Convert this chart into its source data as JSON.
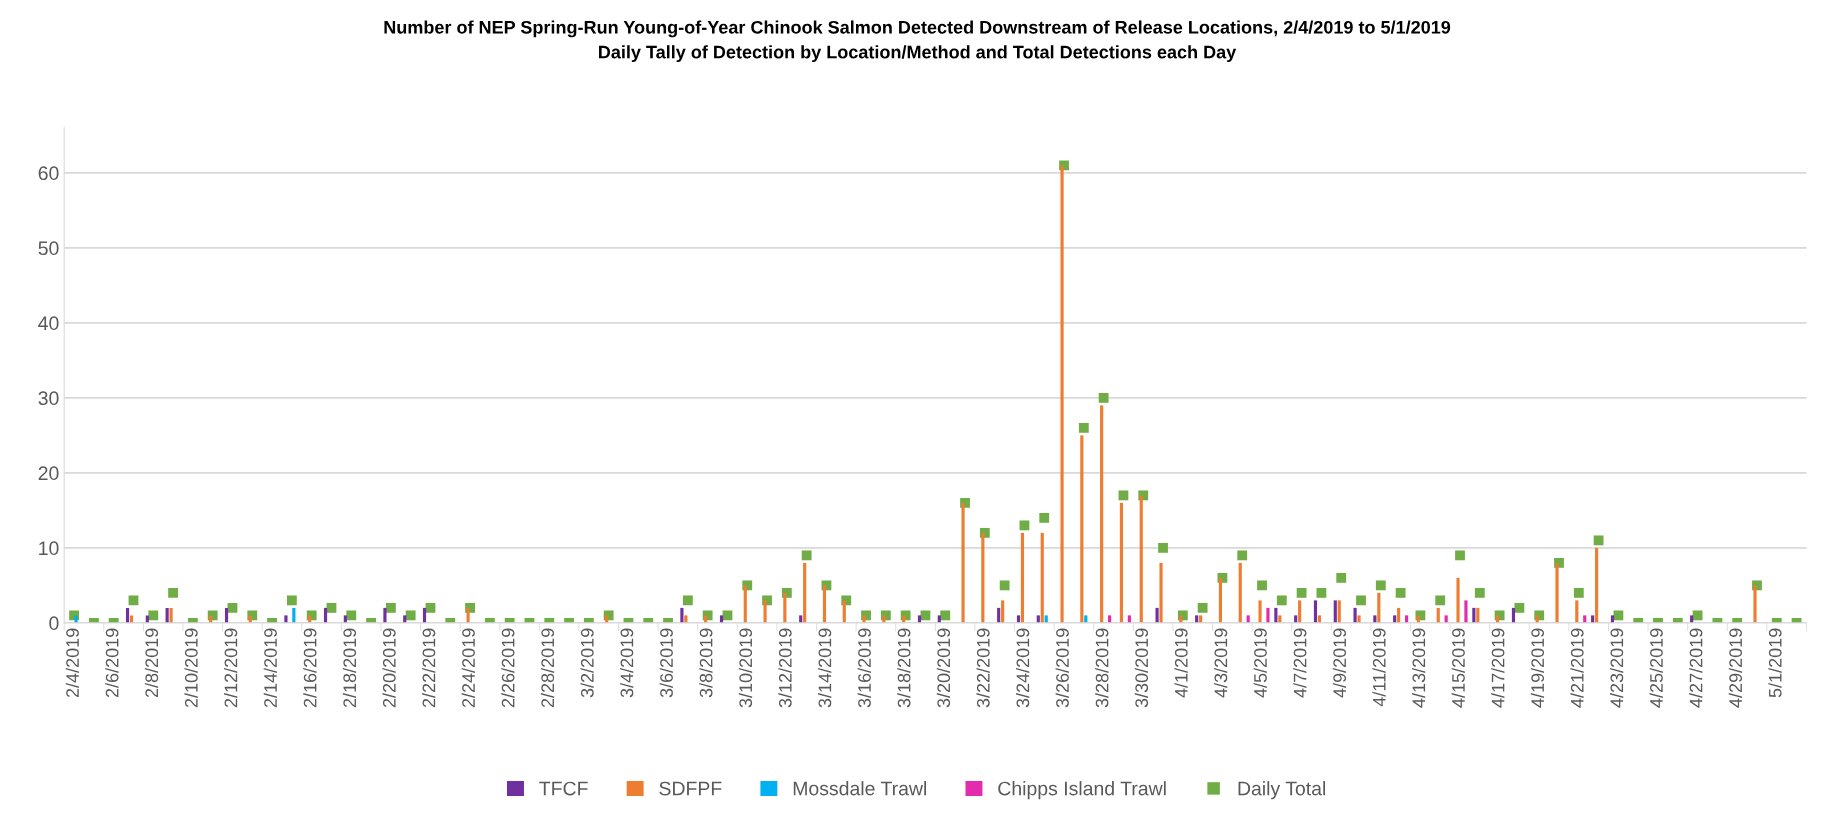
{
  "chart_data": {
    "type": "bar",
    "title": "Number of NEP Spring-Run Young-of-Year Chinook Salmon Detected Downstream of Release Locations, 2/4/2019 to 5/1/2019",
    "subtitle": "Daily Tally of Detection by Location/Method and Total Detections each Day",
    "categories": [
      "2/4/2019",
      null,
      "2/6/2019",
      null,
      "2/8/2019",
      null,
      "2/10/2019",
      null,
      "2/12/2019",
      null,
      "2/14/2019",
      null,
      "2/16/2019",
      null,
      "2/18/2019",
      null,
      "2/20/2019",
      null,
      "2/22/2019",
      null,
      "2/24/2019",
      null,
      "2/26/2019",
      null,
      "2/28/2019",
      null,
      "3/2/2019",
      null,
      "3/4/2019",
      null,
      "3/6/2019",
      null,
      "3/8/2019",
      null,
      "3/10/2019",
      null,
      "3/12/2019",
      null,
      "3/14/2019",
      null,
      "3/16/2019",
      null,
      "3/18/2019",
      null,
      "3/20/2019",
      null,
      "3/22/2019",
      null,
      "3/24/2019",
      null,
      "3/26/2019",
      null,
      "3/28/2019",
      null,
      "3/30/2019",
      null,
      "4/1/2019",
      null,
      "4/3/2019",
      null,
      "4/5/2019",
      null,
      "4/7/2019",
      null,
      "4/9/2019",
      null,
      "4/11/2019",
      null,
      "4/13/2019",
      null,
      "4/15/2019",
      null,
      "4/17/2019",
      null,
      "4/19/2019",
      null,
      "4/21/2019",
      null,
      "4/23/2019",
      null,
      "4/25/2019",
      null,
      "4/27/2019",
      null,
      "4/29/2019",
      null,
      "5/1/2019",
      null
    ],
    "series": [
      {
        "name": "TFCF",
        "color": "#7030a0",
        "values": [
          0,
          0,
          0,
          2,
          1,
          2,
          0,
          0,
          2,
          0,
          0,
          1,
          0,
          2,
          1,
          0,
          2,
          1,
          2,
          0,
          0,
          0,
          0,
          0,
          0,
          0,
          0,
          0,
          0,
          0,
          0,
          2,
          0,
          1,
          0,
          0,
          0,
          1,
          0,
          0,
          0,
          0,
          0,
          1,
          1,
          0,
          0,
          2,
          1,
          1,
          0,
          0,
          0,
          0,
          0,
          2,
          0,
          1,
          0,
          0,
          0,
          2,
          1,
          3,
          3,
          2,
          1,
          1,
          0,
          0,
          0,
          2,
          0,
          2,
          0,
          0,
          0,
          1,
          1,
          0,
          0,
          0,
          1,
          0,
          0,
          0,
          0,
          0
        ]
      },
      {
        "name": "SDFPF",
        "color": "#ed7d31",
        "values": [
          0,
          0,
          0,
          1,
          0,
          2,
          0,
          1,
          0,
          1,
          0,
          0,
          1,
          0,
          0,
          0,
          0,
          0,
          0,
          0,
          2,
          0,
          0,
          0,
          0,
          0,
          0,
          1,
          0,
          0,
          0,
          1,
          1,
          0,
          5,
          3,
          4,
          8,
          5,
          3,
          1,
          1,
          1,
          0,
          0,
          16,
          12,
          3,
          12,
          12,
          61,
          25,
          29,
          16,
          17,
          8,
          1,
          1,
          6,
          8,
          3,
          1,
          3,
          1,
          3,
          1,
          4,
          2,
          1,
          2,
          6,
          2,
          1,
          0,
          1,
          8,
          3,
          10,
          0,
          0,
          0,
          0,
          0,
          0,
          0,
          5,
          0,
          0
        ]
      },
      {
        "name": "Mossdale Trawl",
        "color": "#00b0f0",
        "values": [
          1,
          0,
          0,
          0,
          0,
          0,
          0,
          0,
          0,
          0,
          0,
          2,
          0,
          0,
          0,
          0,
          0,
          0,
          0,
          0,
          0,
          0,
          0,
          0,
          0,
          0,
          0,
          0,
          0,
          0,
          0,
          0,
          0,
          0,
          0,
          0,
          0,
          0,
          0,
          0,
          0,
          0,
          0,
          0,
          0,
          0,
          0,
          0,
          0,
          1,
          0,
          1,
          0,
          0,
          0,
          0,
          0,
          0,
          0,
          0,
          0,
          0,
          0,
          0,
          0,
          0,
          0,
          0,
          0,
          0,
          0,
          0,
          0,
          0,
          0,
          0,
          0,
          0,
          0,
          0,
          0,
          0,
          0,
          0,
          0,
          0,
          0,
          0
        ]
      },
      {
        "name": "Chipps Island Trawl",
        "color": "#e32bae",
        "values": [
          0,
          0,
          0,
          0,
          0,
          0,
          0,
          0,
          0,
          0,
          0,
          0,
          0,
          0,
          0,
          0,
          0,
          0,
          0,
          0,
          0,
          0,
          0,
          0,
          0,
          0,
          0,
          0,
          0,
          0,
          0,
          0,
          0,
          0,
          0,
          0,
          0,
          0,
          0,
          0,
          0,
          0,
          0,
          0,
          0,
          0,
          0,
          0,
          0,
          0,
          0,
          0,
          1,
          1,
          0,
          0,
          0,
          0,
          0,
          1,
          2,
          0,
          0,
          0,
          0,
          0,
          0,
          1,
          0,
          1,
          3,
          0,
          0,
          0,
          0,
          0,
          1,
          0,
          0,
          0,
          0,
          0,
          0,
          0,
          0,
          0,
          0,
          0
        ]
      },
      {
        "name": "Daily Total",
        "type": "scatter",
        "marker": "square",
        "color": "#70ad47",
        "values": [
          1,
          0,
          0,
          3,
          1,
          4,
          0,
          1,
          2,
          1,
          0,
          3,
          1,
          2,
          1,
          0,
          2,
          1,
          2,
          0,
          2,
          0,
          0,
          0,
          0,
          0,
          0,
          1,
          0,
          0,
          0,
          3,
          1,
          1,
          5,
          3,
          4,
          9,
          5,
          3,
          1,
          1,
          1,
          1,
          1,
          16,
          12,
          5,
          13,
          14,
          61,
          26,
          30,
          17,
          17,
          10,
          1,
          2,
          6,
          9,
          5,
          3,
          4,
          4,
          6,
          3,
          5,
          4,
          1,
          3,
          9,
          4,
          1,
          2,
          1,
          8,
          4,
          11,
          1,
          0,
          0,
          0,
          1,
          0,
          0,
          5,
          0,
          0
        ]
      }
    ],
    "ylim": [
      0,
      66
    ],
    "yticks": [
      0,
      10,
      20,
      30,
      40,
      50,
      60
    ],
    "grid": "y",
    "legend": "bottom"
  }
}
